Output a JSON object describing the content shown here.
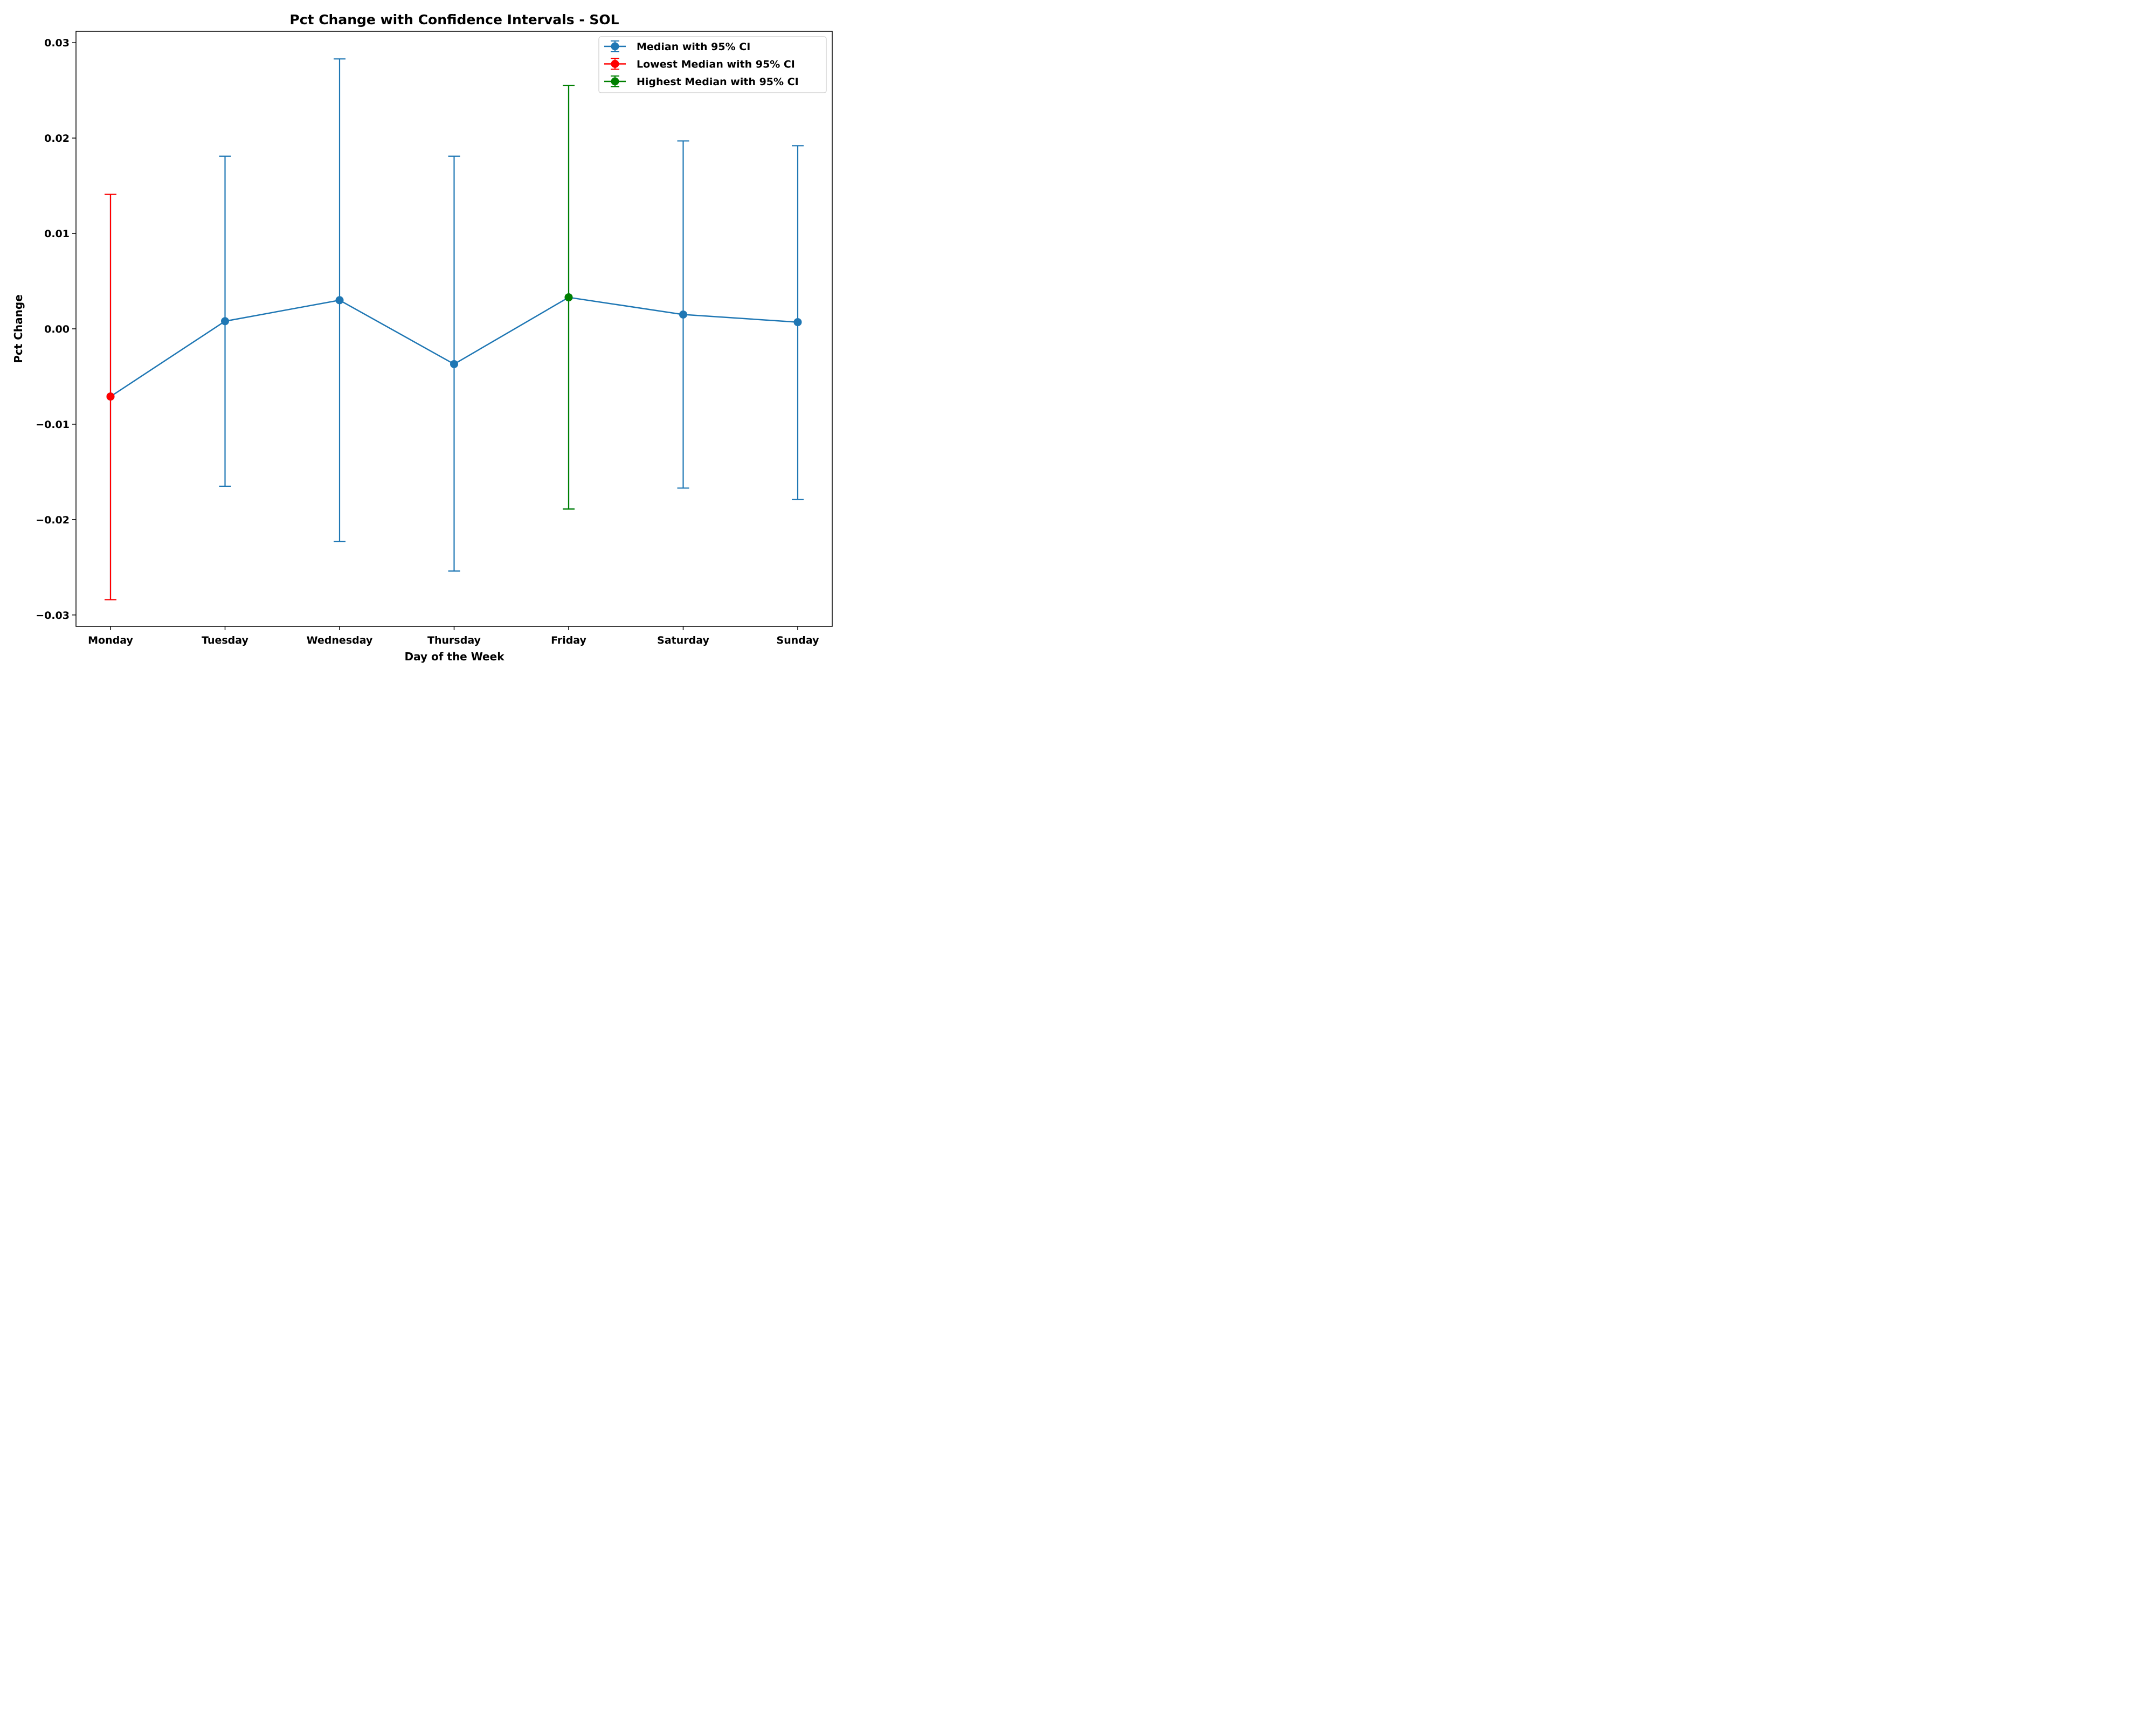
{
  "chart_data": {
    "type": "line",
    "title": "Pct Change with Confidence Intervals - SOL",
    "xlabel": "Day of the Week",
    "ylabel": "Pct Change",
    "categories": [
      "Monday",
      "Tuesday",
      "Wednesday",
      "Thursday",
      "Friday",
      "Saturday",
      "Sunday"
    ],
    "ylim": [
      -0.0312,
      0.0312
    ],
    "yticks": [
      {
        "value": 0.03,
        "label": "0.03"
      },
      {
        "value": 0.02,
        "label": "0.02"
      },
      {
        "value": 0.01,
        "label": "0.01"
      },
      {
        "value": 0.0,
        "label": "0.00"
      },
      {
        "value": -0.01,
        "label": "−0.01"
      },
      {
        "value": -0.02,
        "label": "−0.02"
      },
      {
        "value": -0.03,
        "label": "−0.03"
      }
    ],
    "grid": false,
    "legend_position": "top-right",
    "series": [
      {
        "name": "Median with 95% CI",
        "color": "#1f77b4",
        "line": true,
        "points": [
          {
            "x": "Monday",
            "median": -0.0071,
            "lower": -0.0284,
            "upper": 0.0141
          },
          {
            "x": "Tuesday",
            "median": 0.0008,
            "lower": -0.0165,
            "upper": 0.0181
          },
          {
            "x": "Wednesday",
            "median": 0.003,
            "lower": -0.0223,
            "upper": 0.0283
          },
          {
            "x": "Thursday",
            "median": -0.0037,
            "lower": -0.0254,
            "upper": 0.0181
          },
          {
            "x": "Friday",
            "median": 0.0033,
            "lower": -0.0189,
            "upper": 0.0255
          },
          {
            "x": "Saturday",
            "median": 0.0015,
            "lower": -0.0167,
            "upper": 0.0197
          },
          {
            "x": "Sunday",
            "median": 0.0007,
            "lower": -0.0179,
            "upper": 0.0192
          }
        ]
      },
      {
        "name": "Lowest Median with 95% CI",
        "color": "#ff0000",
        "line": false,
        "points": [
          {
            "x": "Monday",
            "median": -0.0071,
            "lower": -0.0284,
            "upper": 0.0141
          }
        ]
      },
      {
        "name": "Highest Median with 95% CI",
        "color": "#008000",
        "line": false,
        "points": [
          {
            "x": "Friday",
            "median": 0.0033,
            "lower": -0.0189,
            "upper": 0.0255
          }
        ]
      }
    ]
  }
}
